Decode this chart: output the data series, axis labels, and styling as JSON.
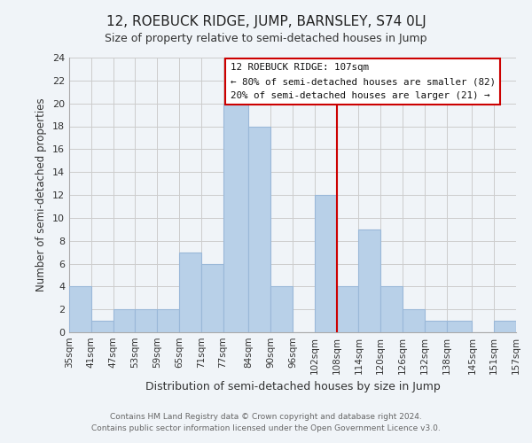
{
  "title": "12, ROEBUCK RIDGE, JUMP, BARNSLEY, S74 0LJ",
  "subtitle": "Size of property relative to semi-detached houses in Jump",
  "xlabel": "Distribution of semi-detached houses by size in Jump",
  "ylabel": "Number of semi-detached properties",
  "bin_labels": [
    "35sqm",
    "41sqm",
    "47sqm",
    "53sqm",
    "59sqm",
    "65sqm",
    "71sqm",
    "77sqm",
    "84sqm",
    "90sqm",
    "96sqm",
    "102sqm",
    "108sqm",
    "114sqm",
    "120sqm",
    "126sqm",
    "132sqm",
    "138sqm",
    "145sqm",
    "151sqm",
    "157sqm"
  ],
  "bin_edges": [
    35,
    41,
    47,
    53,
    59,
    65,
    71,
    77,
    84,
    90,
    96,
    102,
    108,
    114,
    120,
    126,
    132,
    138,
    145,
    151,
    157
  ],
  "bar_heights": [
    4,
    1,
    2,
    2,
    2,
    7,
    6,
    20,
    18,
    4,
    0,
    12,
    4,
    9,
    4,
    2,
    1,
    1,
    0,
    1,
    1
  ],
  "bar_color": "#b8d0e8",
  "bar_edgecolor": "#9ab8d8",
  "property_line_x": 108,
  "property_line_color": "#cc0000",
  "box_text_line1": "12 ROEBUCK RIDGE: 107sqm",
  "box_text_line2": "← 80% of semi-detached houses are smaller (82)",
  "box_text_line3": "20% of semi-detached houses are larger (21) →",
  "box_color": "#ffffff",
  "box_edgecolor": "#cc0000",
  "ylim": [
    0,
    24
  ],
  "yticks": [
    0,
    2,
    4,
    6,
    8,
    10,
    12,
    14,
    16,
    18,
    20,
    22,
    24
  ],
  "grid_color": "#cccccc",
  "footer_line1": "Contains HM Land Registry data © Crown copyright and database right 2024.",
  "footer_line2": "Contains public sector information licensed under the Open Government Licence v3.0.",
  "bg_color": "#f0f4f8"
}
